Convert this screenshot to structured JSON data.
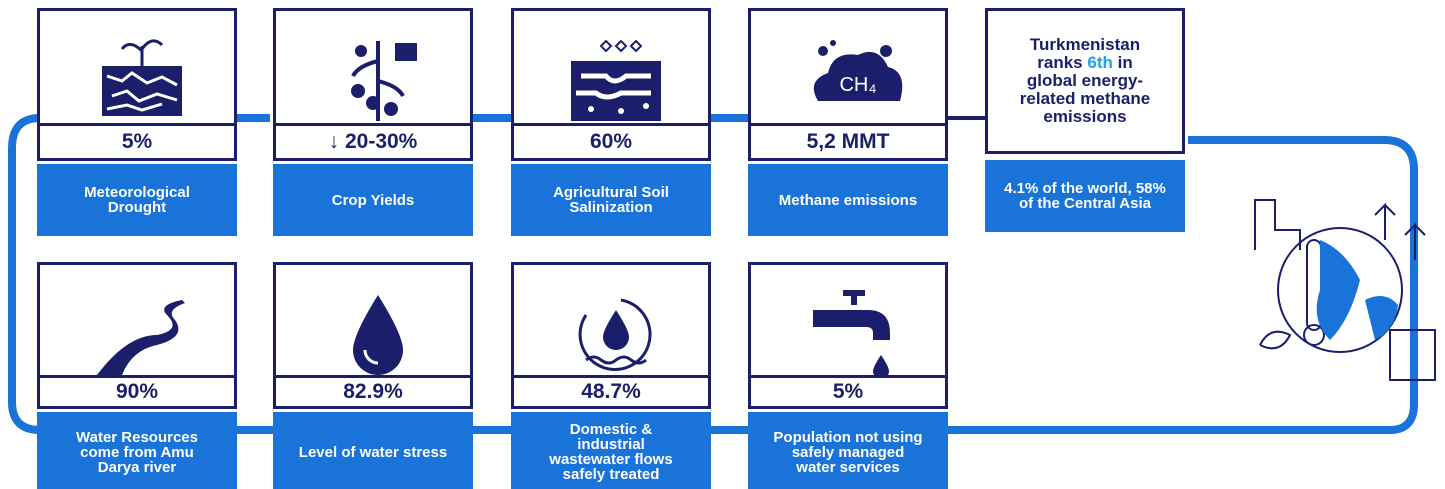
{
  "cards_top": [
    {
      "value": "5%",
      "label": "Meteorological Drought"
    },
    {
      "value": "↓ 20-30%",
      "label": "Crop Yields"
    },
    {
      "value": "60%",
      "label": "Agricultural Soil Salinization"
    },
    {
      "value": "5,2 MMT",
      "label": "Methane emissions",
      "icon_text": "CH₄"
    }
  ],
  "highlight": {
    "title_before": "Turkmenistan ranks",
    "title_rank": "6th",
    "title_after": "in global energy-related methane emissions",
    "label": "4.1% of the world, 58% of the Central Asia"
  },
  "cards_bottom": [
    {
      "value": "90%",
      "label": "Water Resources come from Amu Darya river"
    },
    {
      "value": "82.9%",
      "label": "Level of water stress"
    },
    {
      "value": "48.7%",
      "label": "Domestic & industrial wastewater flows safely treated"
    },
    {
      "value": "5%",
      "label": "Population not using safely managed water services"
    }
  ]
}
